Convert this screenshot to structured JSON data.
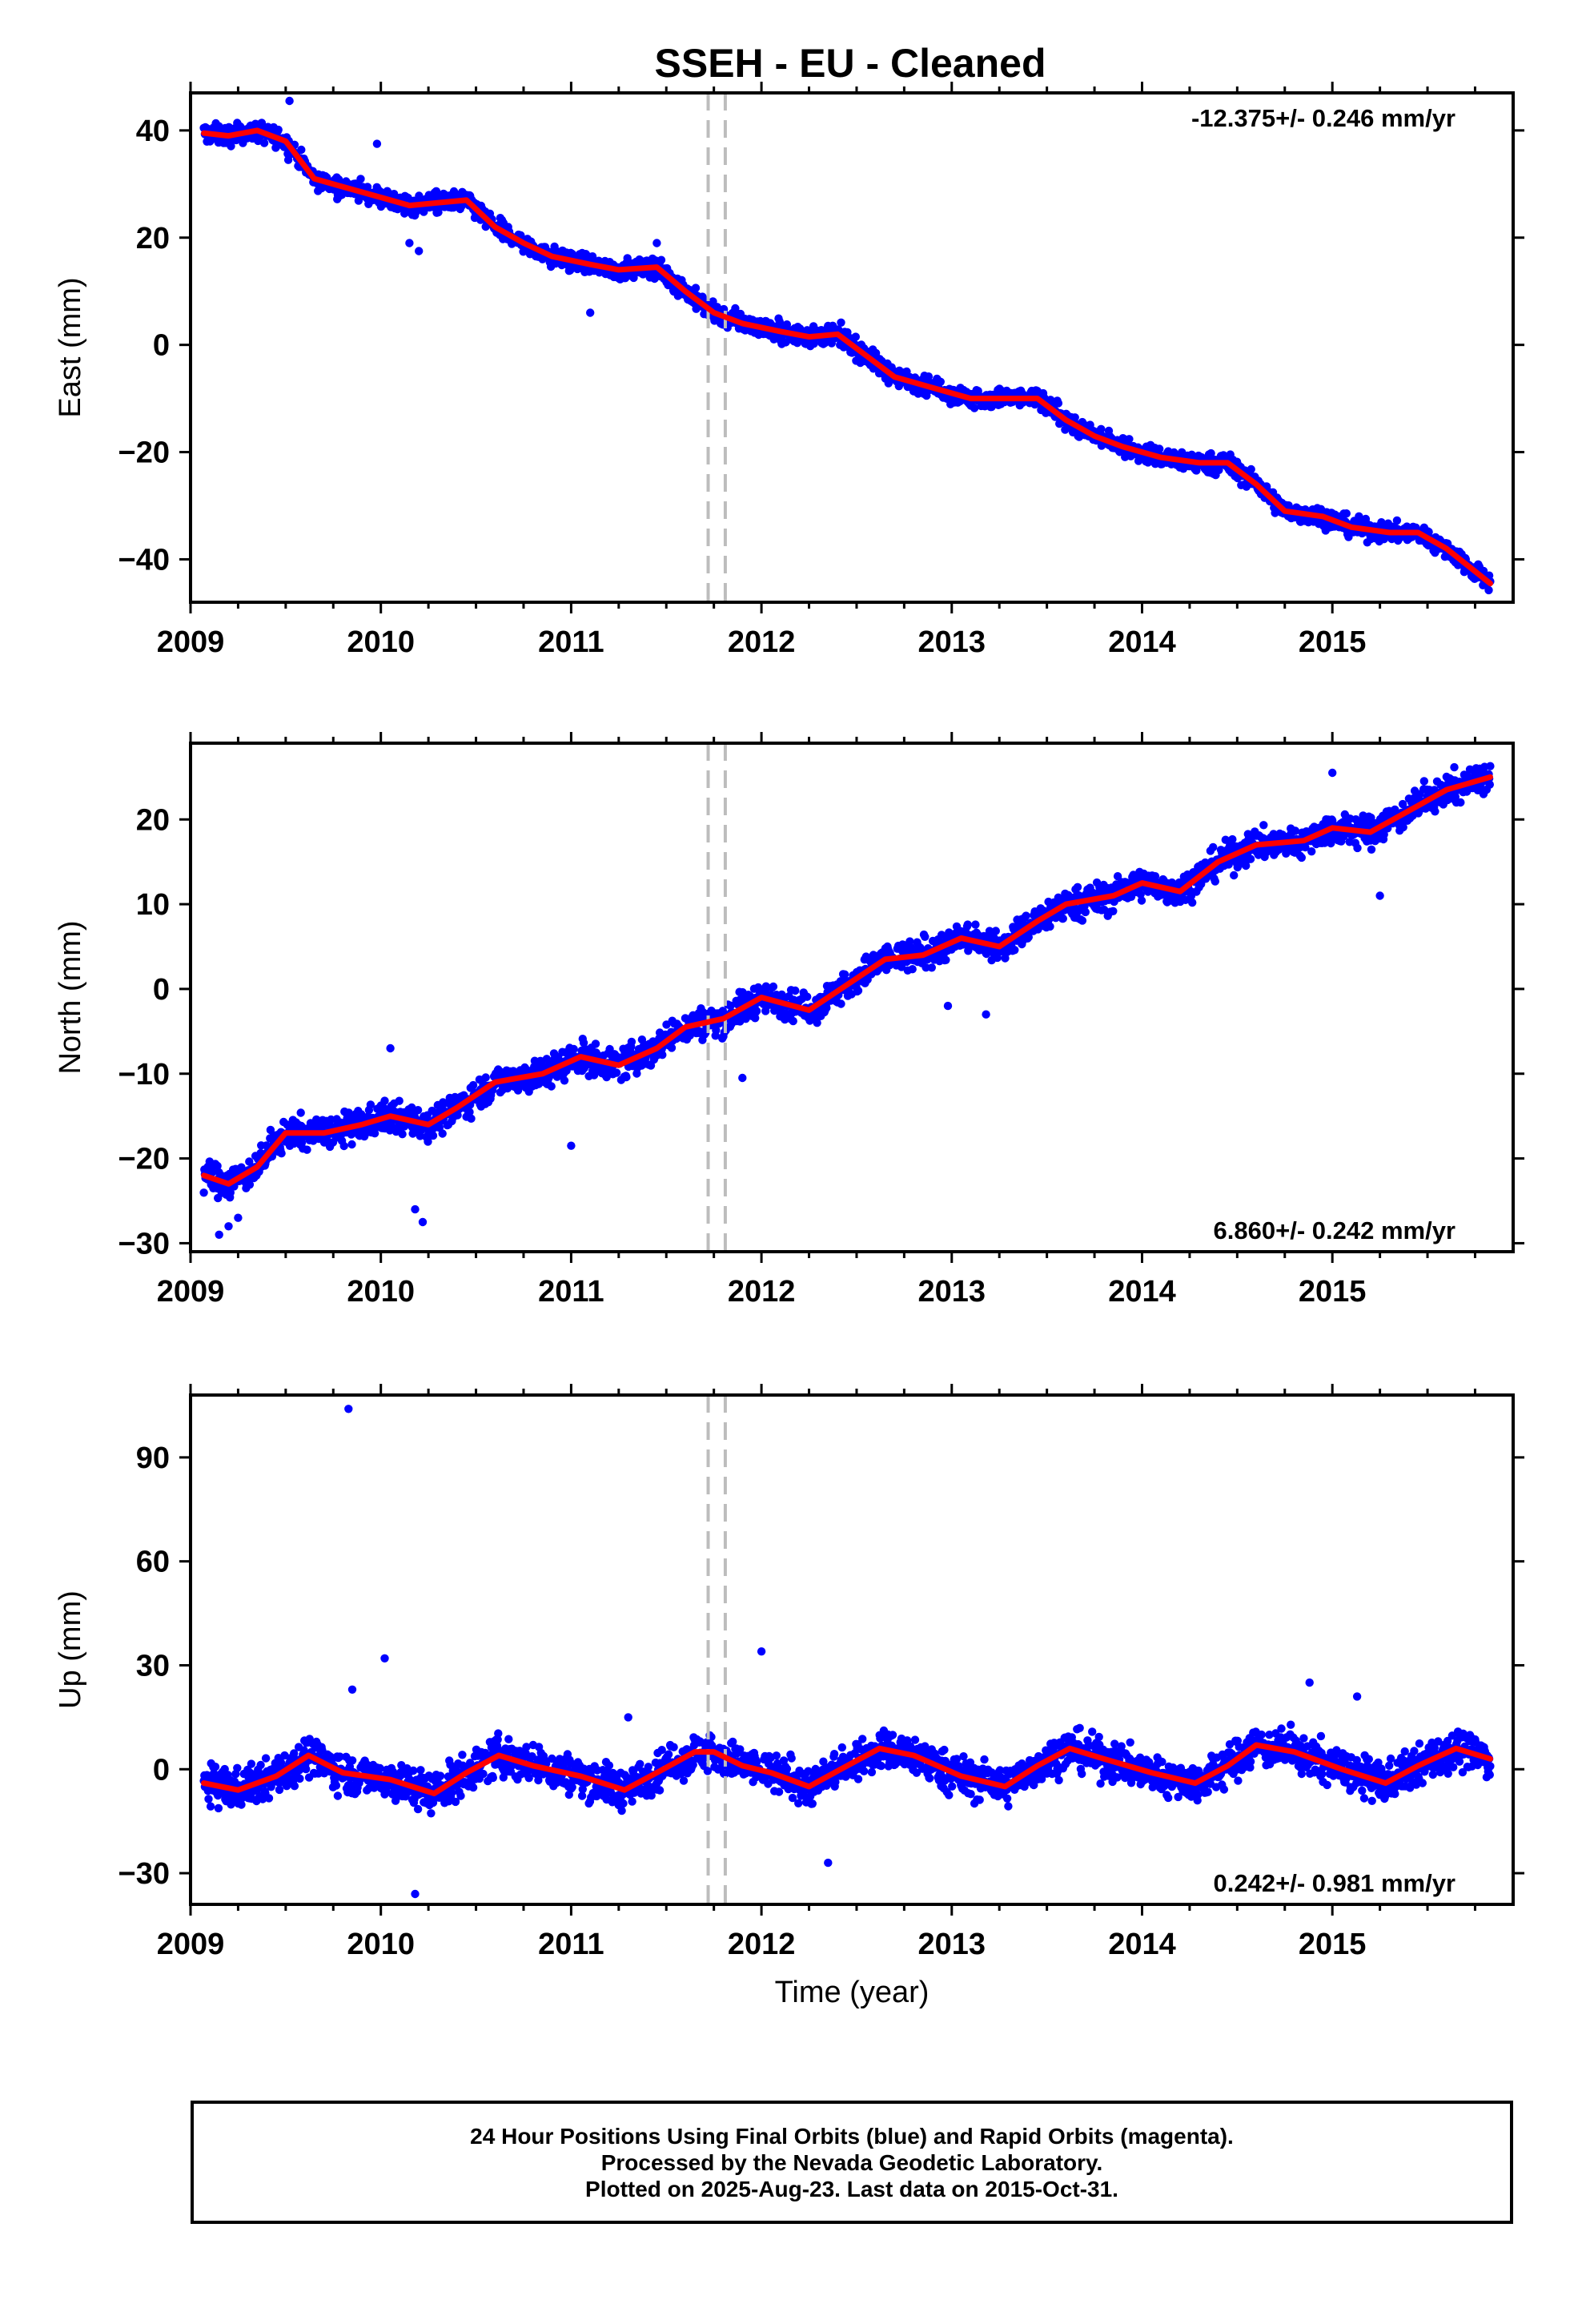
{
  "chart_data": {
    "type": "scatter",
    "title": "SSEH  - EU - Cleaned",
    "xlabel": "Time (year)",
    "xticks": [
      "2009",
      "2010",
      "2011",
      "2012",
      "2013",
      "2014",
      "2015"
    ],
    "x_range": [
      2009.0,
      2015.95
    ],
    "data_span": [
      2009.07,
      2015.83
    ],
    "offset_lines": [
      2011.72,
      2011.81
    ],
    "colors": {
      "points": "#0000ff",
      "fit": "#ff0000",
      "offset_line": "#bdbdbd",
      "axes": "#000000"
    },
    "panels": [
      {
        "ylabel": "East (mm)",
        "ylim": [
          -48,
          47
        ],
        "yticks": [
          40,
          20,
          0,
          -20,
          -40
        ],
        "ytick_labels": [
          "40",
          "20",
          "0",
          "−20",
          "−40"
        ],
        "rate_label": "-12.375+/- 0.246 mm/yr",
        "rate_position": "top-right",
        "fit_curve": [
          [
            2009.07,
            39.5
          ],
          [
            2009.2,
            39
          ],
          [
            2009.35,
            40
          ],
          [
            2009.5,
            38
          ],
          [
            2009.65,
            31
          ],
          [
            2009.8,
            29.5
          ],
          [
            2010.0,
            27.5
          ],
          [
            2010.15,
            26
          ],
          [
            2010.3,
            26.5
          ],
          [
            2010.45,
            27
          ],
          [
            2010.6,
            22
          ],
          [
            2010.75,
            19
          ],
          [
            2010.9,
            16.5
          ],
          [
            2011.1,
            15
          ],
          [
            2011.25,
            14
          ],
          [
            2011.45,
            14.5
          ],
          [
            2011.6,
            10
          ],
          [
            2011.75,
            6
          ],
          [
            2011.9,
            4
          ],
          [
            2012.1,
            2.5
          ],
          [
            2012.25,
            1.5
          ],
          [
            2012.4,
            2
          ],
          [
            2012.55,
            -2
          ],
          [
            2012.7,
            -6
          ],
          [
            2012.9,
            -8
          ],
          [
            2013.1,
            -10
          ],
          [
            2013.3,
            -10
          ],
          [
            2013.45,
            -10
          ],
          [
            2013.6,
            -14
          ],
          [
            2013.75,
            -17
          ],
          [
            2013.9,
            -19
          ],
          [
            2014.1,
            -21
          ],
          [
            2014.3,
            -22
          ],
          [
            2014.45,
            -22
          ],
          [
            2014.6,
            -26
          ],
          [
            2014.75,
            -31
          ],
          [
            2014.95,
            -32
          ],
          [
            2015.1,
            -34
          ],
          [
            2015.3,
            -35
          ],
          [
            2015.45,
            -35
          ],
          [
            2015.6,
            -38
          ],
          [
            2015.83,
            -44.5
          ]
        ],
        "noise_mm": 1.3,
        "outliers": [
          [
            2009.52,
            45.5
          ],
          [
            2009.98,
            37.5
          ],
          [
            2010.15,
            19
          ],
          [
            2010.2,
            17.5
          ],
          [
            2011.1,
            6
          ],
          [
            2011.45,
            19
          ]
        ]
      },
      {
        "ylabel": "North (mm)",
        "ylim": [
          -31,
          29
        ],
        "yticks": [
          20,
          10,
          0,
          -10,
          -20,
          -30
        ],
        "ytick_labels": [
          "20",
          "10",
          "0",
          "−10",
          "−20",
          "−30"
        ],
        "rate_label": "6.860+/- 0.242 mm/yr",
        "rate_position": "bottom-right",
        "fit_curve": [
          [
            2009.07,
            -22
          ],
          [
            2009.2,
            -23
          ],
          [
            2009.35,
            -21
          ],
          [
            2009.5,
            -17
          ],
          [
            2009.7,
            -17
          ],
          [
            2009.9,
            -16
          ],
          [
            2010.05,
            -15
          ],
          [
            2010.25,
            -16
          ],
          [
            2010.4,
            -14
          ],
          [
            2010.6,
            -11
          ],
          [
            2010.85,
            -10
          ],
          [
            2011.05,
            -8
          ],
          [
            2011.25,
            -9
          ],
          [
            2011.45,
            -7
          ],
          [
            2011.6,
            -4.5
          ],
          [
            2011.8,
            -3.5
          ],
          [
            2012.0,
            -1
          ],
          [
            2012.25,
            -2.5
          ],
          [
            2012.45,
            0.5
          ],
          [
            2012.65,
            3.5
          ],
          [
            2012.85,
            4
          ],
          [
            2013.05,
            6
          ],
          [
            2013.25,
            5
          ],
          [
            2013.45,
            8
          ],
          [
            2013.6,
            10
          ],
          [
            2013.85,
            11
          ],
          [
            2014.0,
            12.5
          ],
          [
            2014.2,
            11.5
          ],
          [
            2014.4,
            15
          ],
          [
            2014.6,
            17
          ],
          [
            2014.85,
            17.5
          ],
          [
            2015.0,
            19
          ],
          [
            2015.2,
            18.5
          ],
          [
            2015.4,
            21
          ],
          [
            2015.6,
            23.5
          ],
          [
            2015.83,
            25
          ]
        ],
        "noise_mm": 1.3,
        "outliers": [
          [
            2009.15,
            -29
          ],
          [
            2009.2,
            -28
          ],
          [
            2009.25,
            -27
          ],
          [
            2010.05,
            -7
          ],
          [
            2010.18,
            -26
          ],
          [
            2010.22,
            -27.5
          ],
          [
            2011.0,
            -18.5
          ],
          [
            2011.9,
            -10.5
          ],
          [
            2012.98,
            -2
          ],
          [
            2013.18,
            -3
          ],
          [
            2015.25,
            11
          ],
          [
            2015.0,
            25.5
          ]
        ]
      },
      {
        "ylabel": "Up (mm)",
        "ylim": [
          -39,
          108
        ],
        "yticks": [
          90,
          60,
          30,
          0,
          -30
        ],
        "ytick_labels": [
          "90",
          "60",
          "30",
          "0",
          "−30"
        ],
        "rate_label": "0.242+/- 0.981 mm/yr",
        "rate_position": "bottom-right",
        "fit_curve": [
          [
            2009.07,
            -4
          ],
          [
            2009.25,
            -6
          ],
          [
            2009.45,
            -2
          ],
          [
            2009.62,
            4
          ],
          [
            2009.8,
            -1
          ],
          [
            2010.05,
            -3
          ],
          [
            2010.28,
            -7
          ],
          [
            2010.45,
            -1
          ],
          [
            2010.62,
            4
          ],
          [
            2010.8,
            1
          ],
          [
            2011.05,
            -2
          ],
          [
            2011.28,
            -6
          ],
          [
            2011.45,
            -1
          ],
          [
            2011.65,
            5
          ],
          [
            2011.75,
            5
          ],
          [
            2011.9,
            1
          ],
          [
            2012.05,
            -1
          ],
          [
            2012.25,
            -5
          ],
          [
            2012.45,
            1
          ],
          [
            2012.62,
            6
          ],
          [
            2012.8,
            4
          ],
          [
            2013.05,
            -2
          ],
          [
            2013.28,
            -5
          ],
          [
            2013.45,
            1
          ],
          [
            2013.62,
            6
          ],
          [
            2013.8,
            3
          ],
          [
            2014.05,
            -1
          ],
          [
            2014.28,
            -4
          ],
          [
            2014.45,
            1
          ],
          [
            2014.6,
            7
          ],
          [
            2014.8,
            5
          ],
          [
            2015.05,
            0
          ],
          [
            2015.28,
            -4
          ],
          [
            2015.45,
            1
          ],
          [
            2015.65,
            6
          ],
          [
            2015.83,
            3
          ]
        ],
        "noise_mm": 4.0,
        "outliers": [
          [
            2009.83,
            104
          ],
          [
            2010.02,
            32
          ],
          [
            2009.85,
            23
          ],
          [
            2012.0,
            34
          ],
          [
            2012.35,
            -27
          ],
          [
            2010.18,
            -36
          ],
          [
            2014.88,
            25
          ],
          [
            2015.13,
            21
          ],
          [
            2011.3,
            15
          ]
        ]
      }
    ]
  },
  "footer": {
    "line1": "24 Hour Positions Using Final Orbits (blue) and Rapid Orbits (magenta).",
    "line2": "Processed by the Nevada Geodetic Laboratory.",
    "line3": "Plotted on 2025-Aug-23. Last data on 2015-Oct-31."
  }
}
